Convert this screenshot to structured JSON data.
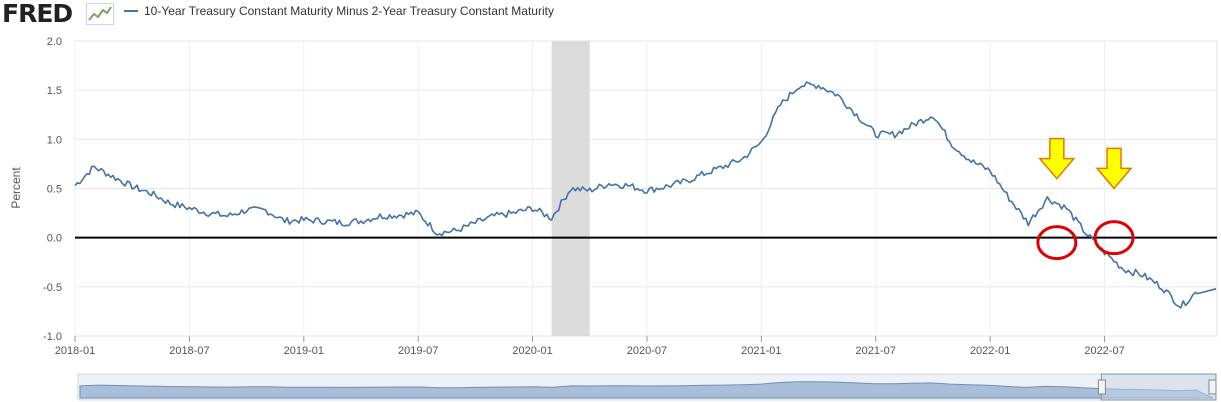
{
  "header": {
    "logo_text": "FRED",
    "legend_label": "10-Year Treasury Constant Maturity Minus 2-Year Treasury Constant Maturity"
  },
  "colors": {
    "series": "#4572A7",
    "recession": "#DCDCDC",
    "zero_line": "#000000",
    "arrow_fill": "#FFFF00",
    "arrow_stroke": "#E07B00",
    "circle": "#E00000",
    "navigator_fill": "#A9BED8"
  },
  "chart_data": {
    "type": "line",
    "title": "10-Year Treasury Constant Maturity Minus 2-Year Treasury Constant Maturity",
    "xlabel": "",
    "ylabel": "Percent",
    "ylim": [
      -1.0,
      2.0
    ],
    "xlim": [
      "2018-01",
      "2022-12"
    ],
    "grid": true,
    "legend_position": "top",
    "y_ticks": [
      "2.0",
      "1.5",
      "1.0",
      "0.5",
      "0.0",
      "-0.5",
      "-1.0"
    ],
    "x_ticks": [
      "2018-01",
      "2018-07",
      "2019-01",
      "2019-07",
      "2020-01",
      "2020-07",
      "2021-01",
      "2021-07",
      "2022-01",
      "2022-07"
    ],
    "recession_shading": [
      {
        "start": "2020-02",
        "end": "2020-04"
      }
    ],
    "reference_line": {
      "y": 0.0
    },
    "series": [
      {
        "name": "10-Year Treasury Constant Maturity Minus 2-Year Treasury Constant Maturity",
        "x": [
          "2018-01",
          "2018-02",
          "2018-03",
          "2018-04",
          "2018-05",
          "2018-06",
          "2018-07",
          "2018-08",
          "2018-09",
          "2018-10",
          "2018-11",
          "2018-12",
          "2019-01",
          "2019-02",
          "2019-03",
          "2019-04",
          "2019-05",
          "2019-06",
          "2019-07",
          "2019-08",
          "2019-09",
          "2019-10",
          "2019-11",
          "2019-12",
          "2020-01",
          "2020-02",
          "2020-03",
          "2020-04",
          "2020-05",
          "2020-06",
          "2020-07",
          "2020-08",
          "2020-09",
          "2020-10",
          "2020-11",
          "2020-12",
          "2021-01",
          "2021-02",
          "2021-03",
          "2021-04",
          "2021-05",
          "2021-06",
          "2021-07",
          "2021-08",
          "2021-09",
          "2021-10",
          "2021-11",
          "2021-12",
          "2022-01",
          "2022-02",
          "2022-03",
          "2022-04",
          "2022-05",
          "2022-06",
          "2022-07",
          "2022-08",
          "2022-09",
          "2022-10",
          "2022-11",
          "2022-12"
        ],
        "values": [
          0.53,
          0.72,
          0.62,
          0.52,
          0.45,
          0.35,
          0.3,
          0.25,
          0.22,
          0.28,
          0.28,
          0.17,
          0.18,
          0.17,
          0.15,
          0.17,
          0.22,
          0.23,
          0.25,
          0.05,
          0.07,
          0.15,
          0.22,
          0.25,
          0.3,
          0.2,
          0.5,
          0.48,
          0.55,
          0.53,
          0.48,
          0.52,
          0.57,
          0.65,
          0.72,
          0.8,
          0.97,
          1.35,
          1.55,
          1.55,
          1.45,
          1.25,
          1.05,
          1.05,
          1.15,
          1.25,
          0.95,
          0.78,
          0.68,
          0.4,
          0.15,
          0.4,
          0.3,
          0.05,
          -0.15,
          -0.32,
          -0.38,
          -0.5,
          -0.7,
          -0.52
        ]
      }
    ],
    "annotations": [
      {
        "type": "arrow",
        "x": "2022-04",
        "y": 0.55
      },
      {
        "type": "circle",
        "x": "2022-04",
        "y": -0.05
      },
      {
        "type": "arrow",
        "x": "2022-07",
        "y": 0.45
      },
      {
        "type": "circle",
        "x": "2022-07",
        "y": 0.0
      }
    ]
  }
}
